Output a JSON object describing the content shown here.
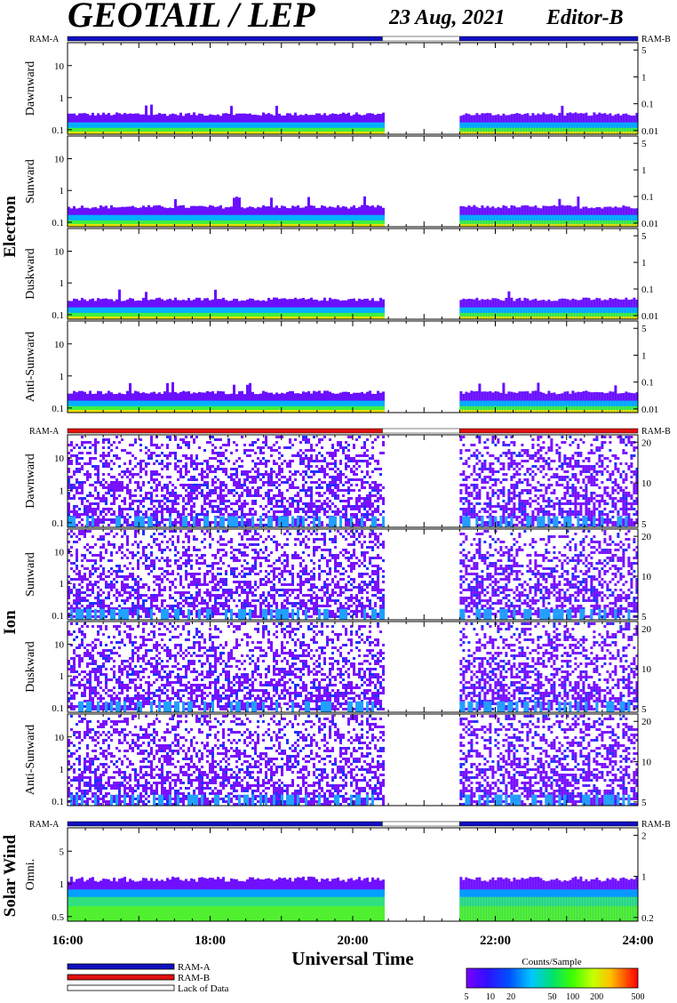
{
  "header": {
    "title": "GEOTAIL / LEP",
    "date": "23 Aug, 2021",
    "editor": "Editor-B"
  },
  "colors": {
    "ram_a": "#1010c0",
    "ram_b": "#e01010",
    "lack_of_data": "#ffffff",
    "spectrogram_palette": [
      "#7a00ff",
      "#3c10ff",
      "#0060ff",
      "#00c0ff",
      "#00e080",
      "#40ff00",
      "#c0ff00",
      "#ffd000",
      "#ff6000",
      "#ff0000"
    ]
  },
  "chart_data": {
    "type": "heatmap",
    "x_axis": {
      "label": "Universal Time",
      "range": [
        "16:00",
        "24:00"
      ],
      "tick_labels": [
        "16:00",
        "18:00",
        "20:00",
        "22:00",
        "24:00"
      ]
    },
    "data_gap": {
      "start": "20:25",
      "end": "21:30"
    },
    "groups": [
      {
        "name": "Electron",
        "ram_bar": {
          "left_label": "RAM-A",
          "right_label": "RAM-B",
          "mode": "RAM-A"
        },
        "left_ticks": [
          "10",
          "1",
          "0.1"
        ],
        "right_ticks": [
          "5",
          "1",
          "0.1",
          "0.01"
        ],
        "panels": [
          {
            "name": "Dawnward"
          },
          {
            "name": "Sunward"
          },
          {
            "name": "Duskward"
          },
          {
            "name": "Anti-Sunward"
          }
        ]
      },
      {
        "name": "Ion",
        "ram_bar": {
          "left_label": "RAM-A",
          "right_label": "RAM-B",
          "mode": "RAM-B"
        },
        "left_ticks": [
          "10",
          "1",
          "0.1"
        ],
        "right_ticks": [
          "20",
          "10",
          "5"
        ],
        "panels": [
          {
            "name": "Dawnward"
          },
          {
            "name": "Sunward"
          },
          {
            "name": "Duskward"
          },
          {
            "name": "Anti-Sunward"
          }
        ]
      },
      {
        "name": "Solar Wind",
        "ram_bar": {
          "left_label": "RAM-A",
          "right_label": "RAM-B",
          "mode": "RAM-A"
        },
        "left_ticks": [
          "5",
          "1",
          "0.5"
        ],
        "right_ticks": [
          "2",
          "1",
          "0.2"
        ],
        "panels": [
          {
            "name": "Omni."
          }
        ]
      }
    ],
    "legend": {
      "items": [
        "RAM-A",
        "RAM-B",
        "Lack of Data"
      ]
    },
    "colorbar": {
      "title": "Counts/Sample",
      "tick_labels": [
        "5",
        "10",
        "20",
        "50",
        "100",
        "200",
        "500"
      ]
    }
  }
}
